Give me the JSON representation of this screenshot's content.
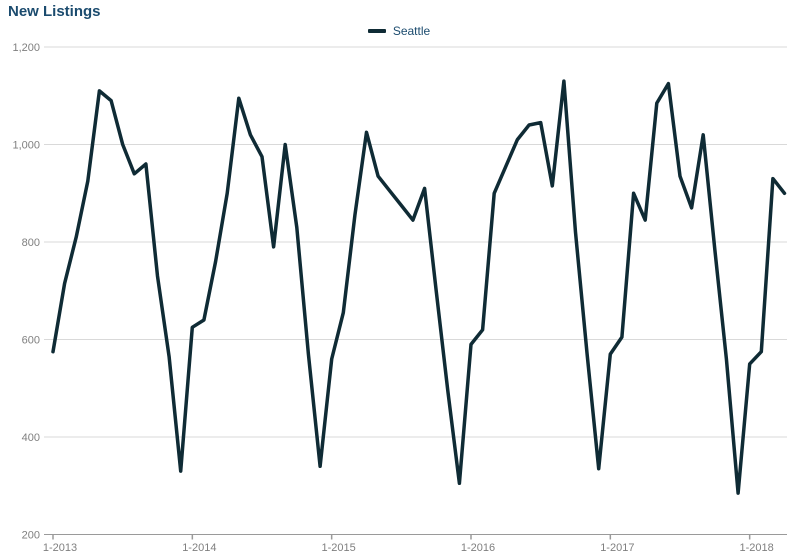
{
  "header": {
    "title": "New Listings"
  },
  "legend": {
    "series_label": "Seattle"
  },
  "colors": {
    "title_text": "#1b4b6e",
    "legend_text": "#1b4b6e",
    "series_line": "#0f2b35",
    "grid_line": "#d9d9d9",
    "axis_line": "#9a9a9a",
    "axis_text": "#7f7f7f"
  },
  "chart_data": {
    "type": "line",
    "title": "New Listings",
    "xlabel": "",
    "ylabel": "",
    "ylim": [
      200,
      1200
    ],
    "grid": "horizontal",
    "legend_position": "top-center",
    "y_ticks": [
      200,
      400,
      600,
      800,
      1000,
      1200
    ],
    "y_tick_labels": [
      "200",
      "400",
      "600",
      "800",
      "1,000",
      "1,200"
    ],
    "x_tick_labels": [
      "1-2013",
      "1-2014",
      "1-2015",
      "1-2016",
      "1-2017",
      "1-2018"
    ],
    "x": [
      "1-2013",
      "2-2013",
      "3-2013",
      "4-2013",
      "5-2013",
      "6-2013",
      "7-2013",
      "8-2013",
      "9-2013",
      "10-2013",
      "11-2013",
      "12-2013",
      "1-2014",
      "2-2014",
      "3-2014",
      "4-2014",
      "5-2014",
      "6-2014",
      "7-2014",
      "8-2014",
      "9-2014",
      "10-2014",
      "11-2014",
      "12-2014",
      "1-2015",
      "2-2015",
      "3-2015",
      "4-2015",
      "5-2015",
      "6-2015",
      "7-2015",
      "8-2015",
      "9-2015",
      "10-2015",
      "11-2015",
      "12-2015",
      "1-2016",
      "2-2016",
      "3-2016",
      "4-2016",
      "5-2016",
      "6-2016",
      "7-2016",
      "8-2016",
      "9-2016",
      "10-2016",
      "11-2016",
      "12-2016",
      "1-2017",
      "2-2017",
      "3-2017",
      "4-2017",
      "5-2017",
      "6-2017",
      "7-2017",
      "8-2017",
      "9-2017",
      "10-2017",
      "11-2017",
      "12-2017",
      "1-2018",
      "2-2018",
      "3-2018",
      "4-2018"
    ],
    "series": [
      {
        "name": "Seattle",
        "color": "#0f2b35",
        "values": [
          575,
          715,
          810,
          925,
          1110,
          1090,
          1000,
          940,
          960,
          730,
          565,
          330,
          625,
          640,
          760,
          900,
          1095,
          1020,
          975,
          790,
          1000,
          830,
          570,
          340,
          560,
          655,
          855,
          1025,
          935,
          905,
          875,
          845,
          910,
          700,
          495,
          305,
          590,
          620,
          900,
          955,
          1010,
          1040,
          1045,
          915,
          1130,
          820,
          570,
          335,
          570,
          605,
          900,
          845,
          1085,
          1125,
          935,
          870,
          1020,
          785,
          560,
          285,
          550,
          575,
          930,
          900
        ]
      }
    ]
  }
}
